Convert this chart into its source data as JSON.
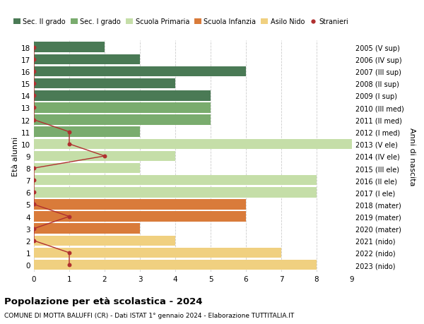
{
  "ages": [
    18,
    17,
    16,
    15,
    14,
    13,
    12,
    11,
    10,
    9,
    8,
    7,
    6,
    5,
    4,
    3,
    2,
    1,
    0
  ],
  "years": [
    "2005 (V sup)",
    "2006 (IV sup)",
    "2007 (III sup)",
    "2008 (II sup)",
    "2009 (I sup)",
    "2010 (III med)",
    "2011 (II med)",
    "2012 (I med)",
    "2013 (V ele)",
    "2014 (IV ele)",
    "2015 (III ele)",
    "2016 (II ele)",
    "2017 (I ele)",
    "2018 (mater)",
    "2019 (mater)",
    "2020 (mater)",
    "2021 (nido)",
    "2022 (nido)",
    "2023 (nido)"
  ],
  "bar_values": [
    2,
    3,
    6,
    4,
    5,
    5,
    5,
    3,
    9,
    4,
    3,
    8,
    8,
    6,
    6,
    3,
    4,
    7,
    8
  ],
  "bar_colors": [
    "#4a7a55",
    "#4a7a55",
    "#4a7a55",
    "#4a7a55",
    "#4a7a55",
    "#7aac6e",
    "#7aac6e",
    "#7aac6e",
    "#c5dea8",
    "#c5dea8",
    "#c5dea8",
    "#c5dea8",
    "#c5dea8",
    "#d97b3a",
    "#d97b3a",
    "#d97b3a",
    "#f0d080",
    "#f0d080",
    "#f0d080"
  ],
  "stranieri_x": [
    0,
    0,
    0,
    0,
    0,
    0,
    0,
    1,
    1,
    2,
    0,
    0,
    0,
    0,
    1,
    0,
    0,
    1,
    1
  ],
  "legend_labels": [
    "Sec. II grado",
    "Sec. I grado",
    "Scuola Primaria",
    "Scuola Infanzia",
    "Asilo Nido",
    "Stranieri"
  ],
  "legend_colors": [
    "#4a7a55",
    "#7aac6e",
    "#c5dea8",
    "#d97b3a",
    "#f0d080",
    "#c0392b"
  ],
  "ylabel_left": "Età alunni",
  "ylabel_right": "Anni di nascita",
  "title": "Popolazione per età scolastica - 2024",
  "subtitle": "COMUNE DI MOTTA BALUFFI (CR) - Dati ISTAT 1° gennaio 2024 - Elaborazione TUTTITALIA.IT",
  "xlim": [
    0,
    9
  ],
  "stranieri_color": "#b03030",
  "background_color": "#ffffff",
  "grid_color": "#cccccc"
}
